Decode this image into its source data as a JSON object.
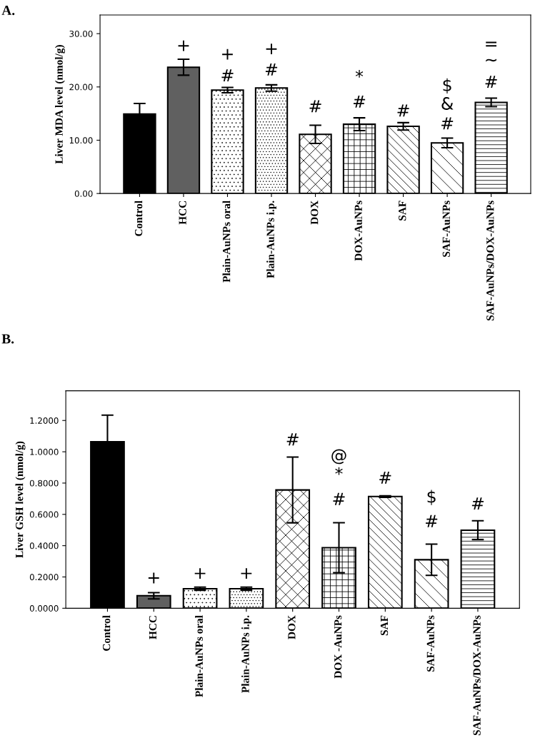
{
  "chart_data": [
    {
      "type": "bar",
      "title": "A.",
      "ylabel": "Liver MDA level (nmol/g)",
      "categories": [
        "Control",
        "HCC",
        "Plain-AuNPs oral",
        "Plain-AuNPs i.p.",
        "DOX",
        "DOX-AuNPs",
        "SAF",
        "SAF-AuNPs",
        "SAF-AuNPs/DOX-AuNPs"
      ],
      "values": [
        14.9,
        23.7,
        19.4,
        19.8,
        11.1,
        13.0,
        12.6,
        9.5,
        17.1
      ],
      "errors": [
        2.0,
        1.5,
        0.5,
        0.6,
        1.7,
        1.2,
        0.7,
        0.9,
        0.8
      ],
      "colors": [
        "#000000",
        "#606060",
        "#ffffff",
        "#ffffff",
        "#ffffff",
        "#ffffff",
        "#ffffff",
        "#ffffff",
        "#ffffff"
      ],
      "ylim": [
        0,
        33.5
      ],
      "yticks": [
        {
          "value": 0,
          "label": "0.00"
        },
        {
          "value": 10,
          "label": "10.00"
        },
        {
          "value": 20,
          "label": "20.00"
        },
        {
          "value": 30,
          "label": "30.00"
        }
      ],
      "grid": false,
      "legend": false,
      "annotations": [
        "+",
        "+",
        "#",
        "+",
        "#",
        "#",
        "*",
        "#",
        "#",
        "$",
        "&",
        "#",
        "=",
        "~",
        "#"
      ]
    },
    {
      "type": "bar",
      "title": "B.",
      "ylabel": "Liver GSH level (nmol/g)",
      "categories": [
        "Control",
        "HCC",
        "Plain-AuNPs oral",
        "Plain-AuNPs i.p.",
        "DOX",
        "DOX -AuNPs",
        "SAF",
        "SAF-AuNPs",
        "SAF-AuNPs/DOX-AuNPs"
      ],
      "values": [
        1.064,
        0.08,
        0.125,
        0.125,
        0.756,
        0.387,
        0.714,
        0.31,
        0.499
      ],
      "errors": [
        0.17,
        0.02,
        0.01,
        0.01,
        0.21,
        0.16,
        0.005,
        0.1,
        0.06
      ],
      "colors": [
        "#000000",
        "#606060",
        "#ffffff",
        "#ffffff",
        "#ffffff",
        "#ffffff",
        "#ffffff",
        "#ffffff",
        "#ffffff"
      ],
      "ylim": [
        0,
        1.39
      ],
      "yticks": [
        {
          "value": 0,
          "label": "0.0000"
        },
        {
          "value": 0.2,
          "label": "0.2000"
        },
        {
          "value": 0.4,
          "label": "0.4000"
        },
        {
          "value": 0.6,
          "label": "0.6000"
        },
        {
          "value": 0.8,
          "label": "0.8000"
        },
        {
          "value": 1.0,
          "label": "1.0000"
        },
        {
          "value": 1.2,
          "label": "1.2000"
        }
      ],
      "grid": false,
      "legend": false,
      "annotations": [
        "+",
        "+",
        "+",
        "#",
        "@",
        "*",
        "#",
        "#",
        "$",
        "#",
        "#"
      ]
    }
  ]
}
